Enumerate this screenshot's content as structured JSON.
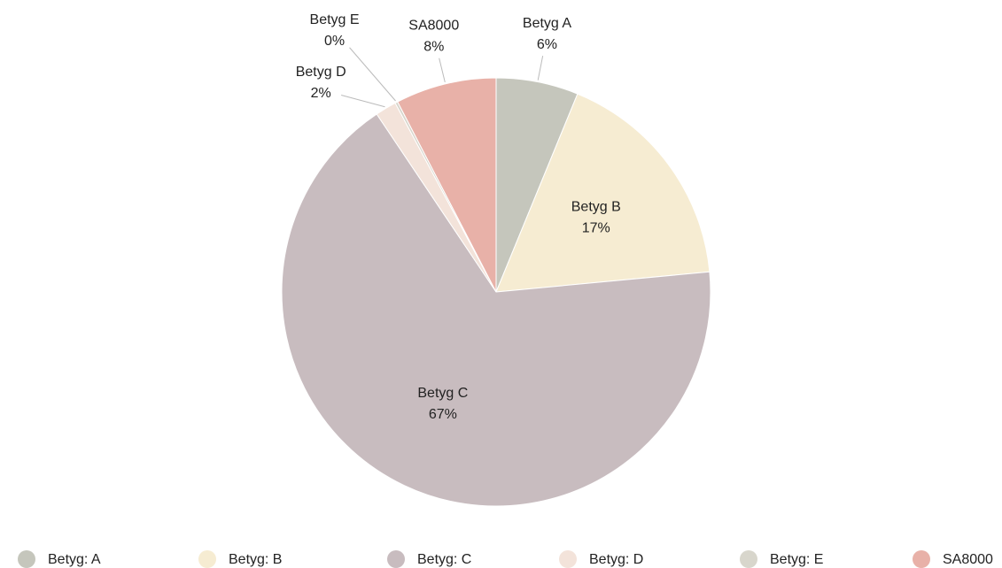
{
  "chart_data": {
    "type": "pie",
    "categories": [
      "Betyg A",
      "Betyg B",
      "Betyg C",
      "Betyg D",
      "Betyg E",
      "SA8000"
    ],
    "legend_labels": [
      "Betyg: A",
      "Betyg: B",
      "Betyg: C",
      "Betyg: D",
      "Betyg: E",
      "SA8000"
    ],
    "values": [
      6.2,
      17.3,
      67.1,
      1.6,
      0.2,
      7.6
    ],
    "value_labels": [
      "6%",
      "17%",
      "67%",
      "2%",
      "0%",
      "8%"
    ],
    "colors": [
      "#c5c6bc",
      "#f6ecd2",
      "#c8bcbf",
      "#f3e3da",
      "#d8d6cc",
      "#e8b1a8"
    ]
  }
}
